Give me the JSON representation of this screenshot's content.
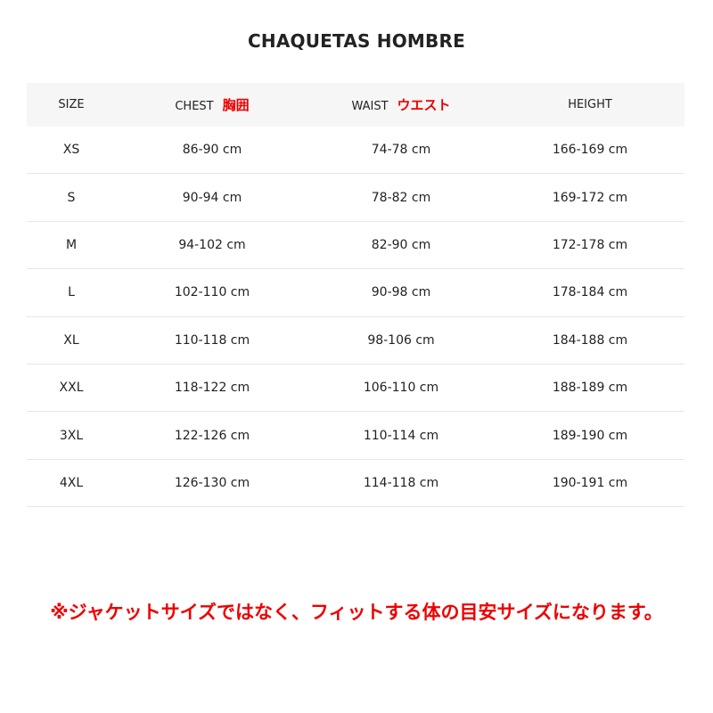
{
  "title": "CHAQUETAS HOMBRE",
  "headers": {
    "size": "SIZE",
    "chest": "CHEST",
    "chest_jp": "胸囲",
    "waist": "WAIST",
    "waist_jp": "ウエスト",
    "height": "HEIGHT"
  },
  "rows": [
    [
      "XS",
      "86-90 cm",
      "74-78 cm",
      "166-169 cm"
    ],
    [
      "S",
      "90-94 cm",
      "78-82 cm",
      "169-172 cm"
    ],
    [
      "M",
      "94-102 cm",
      "82-90 cm",
      "172-178 cm"
    ],
    [
      "L",
      "102-110 cm",
      "90-98 cm",
      "178-184 cm"
    ],
    [
      "XL",
      "110-118 cm",
      "98-106 cm",
      "184-188 cm"
    ],
    [
      "XXL",
      "118-122 cm",
      "106-110 cm",
      "188-189 cm"
    ],
    [
      "3XL",
      "122-126 cm",
      "110-114 cm",
      "189-190 cm"
    ],
    [
      "4XL",
      "126-130 cm",
      "114-118 cm",
      "190-191 cm"
    ]
  ],
  "note": "※ジャケットサイズではなく、フィットする体の目安サイズになります。",
  "colors": {
    "accent": "#e00000",
    "header_bg": "#f6f6f6"
  }
}
